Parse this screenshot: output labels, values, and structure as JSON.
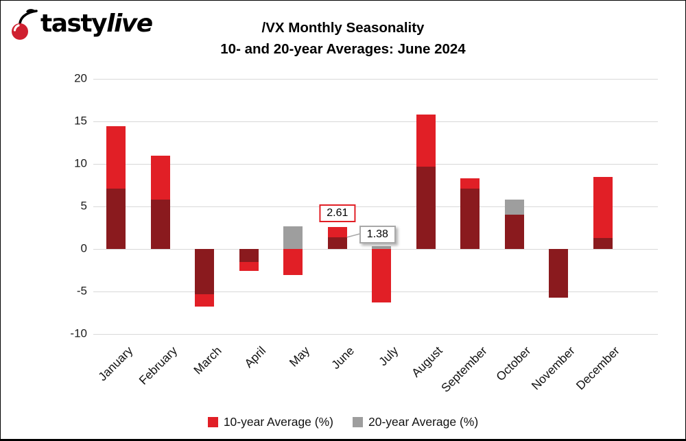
{
  "logo": {
    "tasty": "tasty",
    "live": "live"
  },
  "title": {
    "line1": "/VX Monthly Seasonality",
    "line2": "10- and 20-year Averages: June 2024"
  },
  "chart_data": {
    "type": "bar",
    "title": "/VX Monthly Seasonality",
    "subtitle": "10- and 20-year Averages: June 2024",
    "categories": [
      "January",
      "February",
      "March",
      "April",
      "May",
      "June",
      "July",
      "August",
      "September",
      "October",
      "November",
      "December"
    ],
    "series": [
      {
        "name": "10-year Average (%)",
        "color": "#e11f26",
        "values": [
          14.4,
          11.0,
          -6.8,
          -2.6,
          -3.1,
          2.61,
          -6.3,
          15.8,
          8.3,
          4.0,
          -5.7,
          8.5
        ]
      },
      {
        "name": "20-year Average (%)",
        "color": "#9e9e9e",
        "values": [
          7.1,
          5.8,
          -5.3,
          -1.5,
          2.7,
          1.38,
          0.3,
          9.7,
          7.1,
          5.8,
          -5.7,
          1.3
        ]
      }
    ],
    "overlap_color": "#8a1a1e",
    "ylim": [
      -10,
      20
    ],
    "yticks": [
      20,
      15,
      10,
      5,
      0,
      -5,
      -10
    ],
    "grid": true,
    "gridline_color": "#d8d8d8",
    "legend_position": "bottom",
    "annotations": [
      {
        "text": "2.61",
        "value": 2.61,
        "month": "June",
        "series": "10-year Average (%)",
        "placement": "above",
        "border_color": "#e11f26"
      },
      {
        "text": "1.38",
        "value": 1.38,
        "month": "June",
        "series": "20-year Average (%)",
        "placement": "right",
        "border_color": "#a8a8a8"
      }
    ]
  }
}
